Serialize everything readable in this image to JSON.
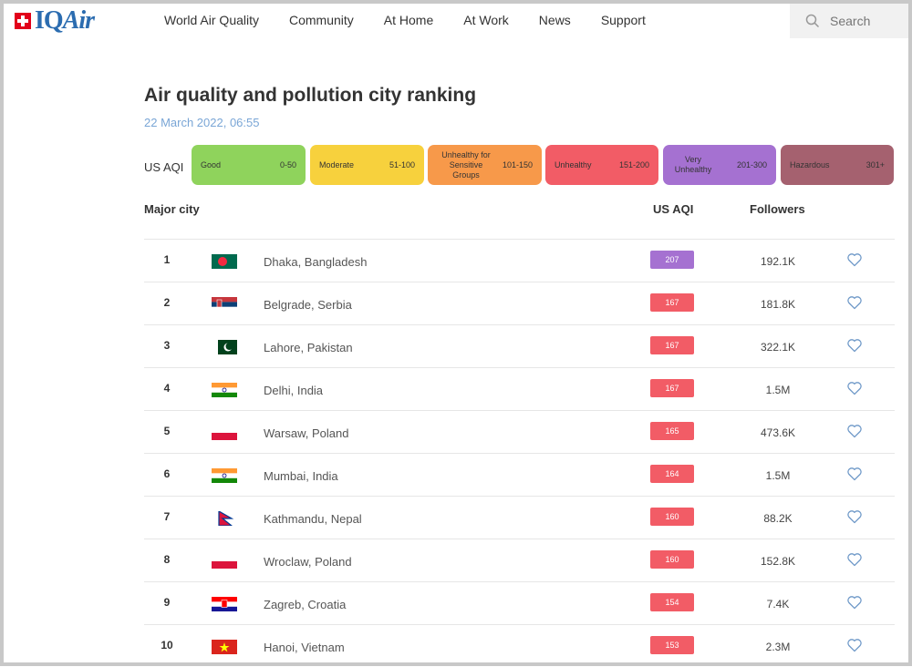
{
  "header": {
    "logo_text_a": "IQ",
    "logo_text_b": "Air",
    "nav": [
      "World Air Quality",
      "Community",
      "At Home",
      "At Work",
      "News",
      "Support"
    ],
    "search_placeholder": "Search"
  },
  "page": {
    "title": "Air quality and pollution city ranking",
    "date": "22 March 2022, 06:55"
  },
  "legend": {
    "label": "US AQI",
    "items": [
      {
        "name": "Good",
        "range": "0-50",
        "color": "#8fd35c"
      },
      {
        "name": "Moderate",
        "range": "51-100",
        "color": "#f7d13d"
      },
      {
        "name": "Unhealthy for Sensitive Groups",
        "range": "101-150",
        "color": "#f7994a"
      },
      {
        "name": "Unhealthy",
        "range": "151-200",
        "color": "#f25c66"
      },
      {
        "name": "Very Unhealthy",
        "range": "201-300",
        "color": "#a571d1"
      },
      {
        "name": "Hazardous",
        "range": "301+",
        "color": "#a5616f"
      }
    ]
  },
  "table": {
    "col_city": "Major city",
    "col_aqi": "US AQI",
    "col_followers": "Followers",
    "rows": [
      {
        "rank": "1",
        "city": "Dhaka, Bangladesh",
        "aqi": "207",
        "followers": "192.1K",
        "flag": "bd-flag-icon",
        "color": "#a571d1"
      },
      {
        "rank": "2",
        "city": "Belgrade, Serbia",
        "aqi": "167",
        "followers": "181.8K",
        "flag": "rs-flag-icon",
        "color": "#f25c66"
      },
      {
        "rank": "3",
        "city": "Lahore, Pakistan",
        "aqi": "167",
        "followers": "322.1K",
        "flag": "pk-flag-icon",
        "color": "#f25c66"
      },
      {
        "rank": "4",
        "city": "Delhi, India",
        "aqi": "167",
        "followers": "1.5M",
        "flag": "in-flag-icon",
        "color": "#f25c66"
      },
      {
        "rank": "5",
        "city": "Warsaw, Poland",
        "aqi": "165",
        "followers": "473.6K",
        "flag": "pl-flag-icon",
        "color": "#f25c66"
      },
      {
        "rank": "6",
        "city": "Mumbai, India",
        "aqi": "164",
        "followers": "1.5M",
        "flag": "in-flag-icon",
        "color": "#f25c66"
      },
      {
        "rank": "7",
        "city": "Kathmandu, Nepal",
        "aqi": "160",
        "followers": "88.2K",
        "flag": "np-flag-icon",
        "color": "#f25c66"
      },
      {
        "rank": "8",
        "city": "Wroclaw, Poland",
        "aqi": "160",
        "followers": "152.8K",
        "flag": "pl-flag-icon",
        "color": "#f25c66"
      },
      {
        "rank": "9",
        "city": "Zagreb, Croatia",
        "aqi": "154",
        "followers": "7.4K",
        "flag": "hr-flag-icon",
        "color": "#f25c66"
      },
      {
        "rank": "10",
        "city": "Hanoi, Vietnam",
        "aqi": "153",
        "followers": "2.3M",
        "flag": "vn-flag-icon",
        "color": "#f25c66"
      }
    ]
  }
}
